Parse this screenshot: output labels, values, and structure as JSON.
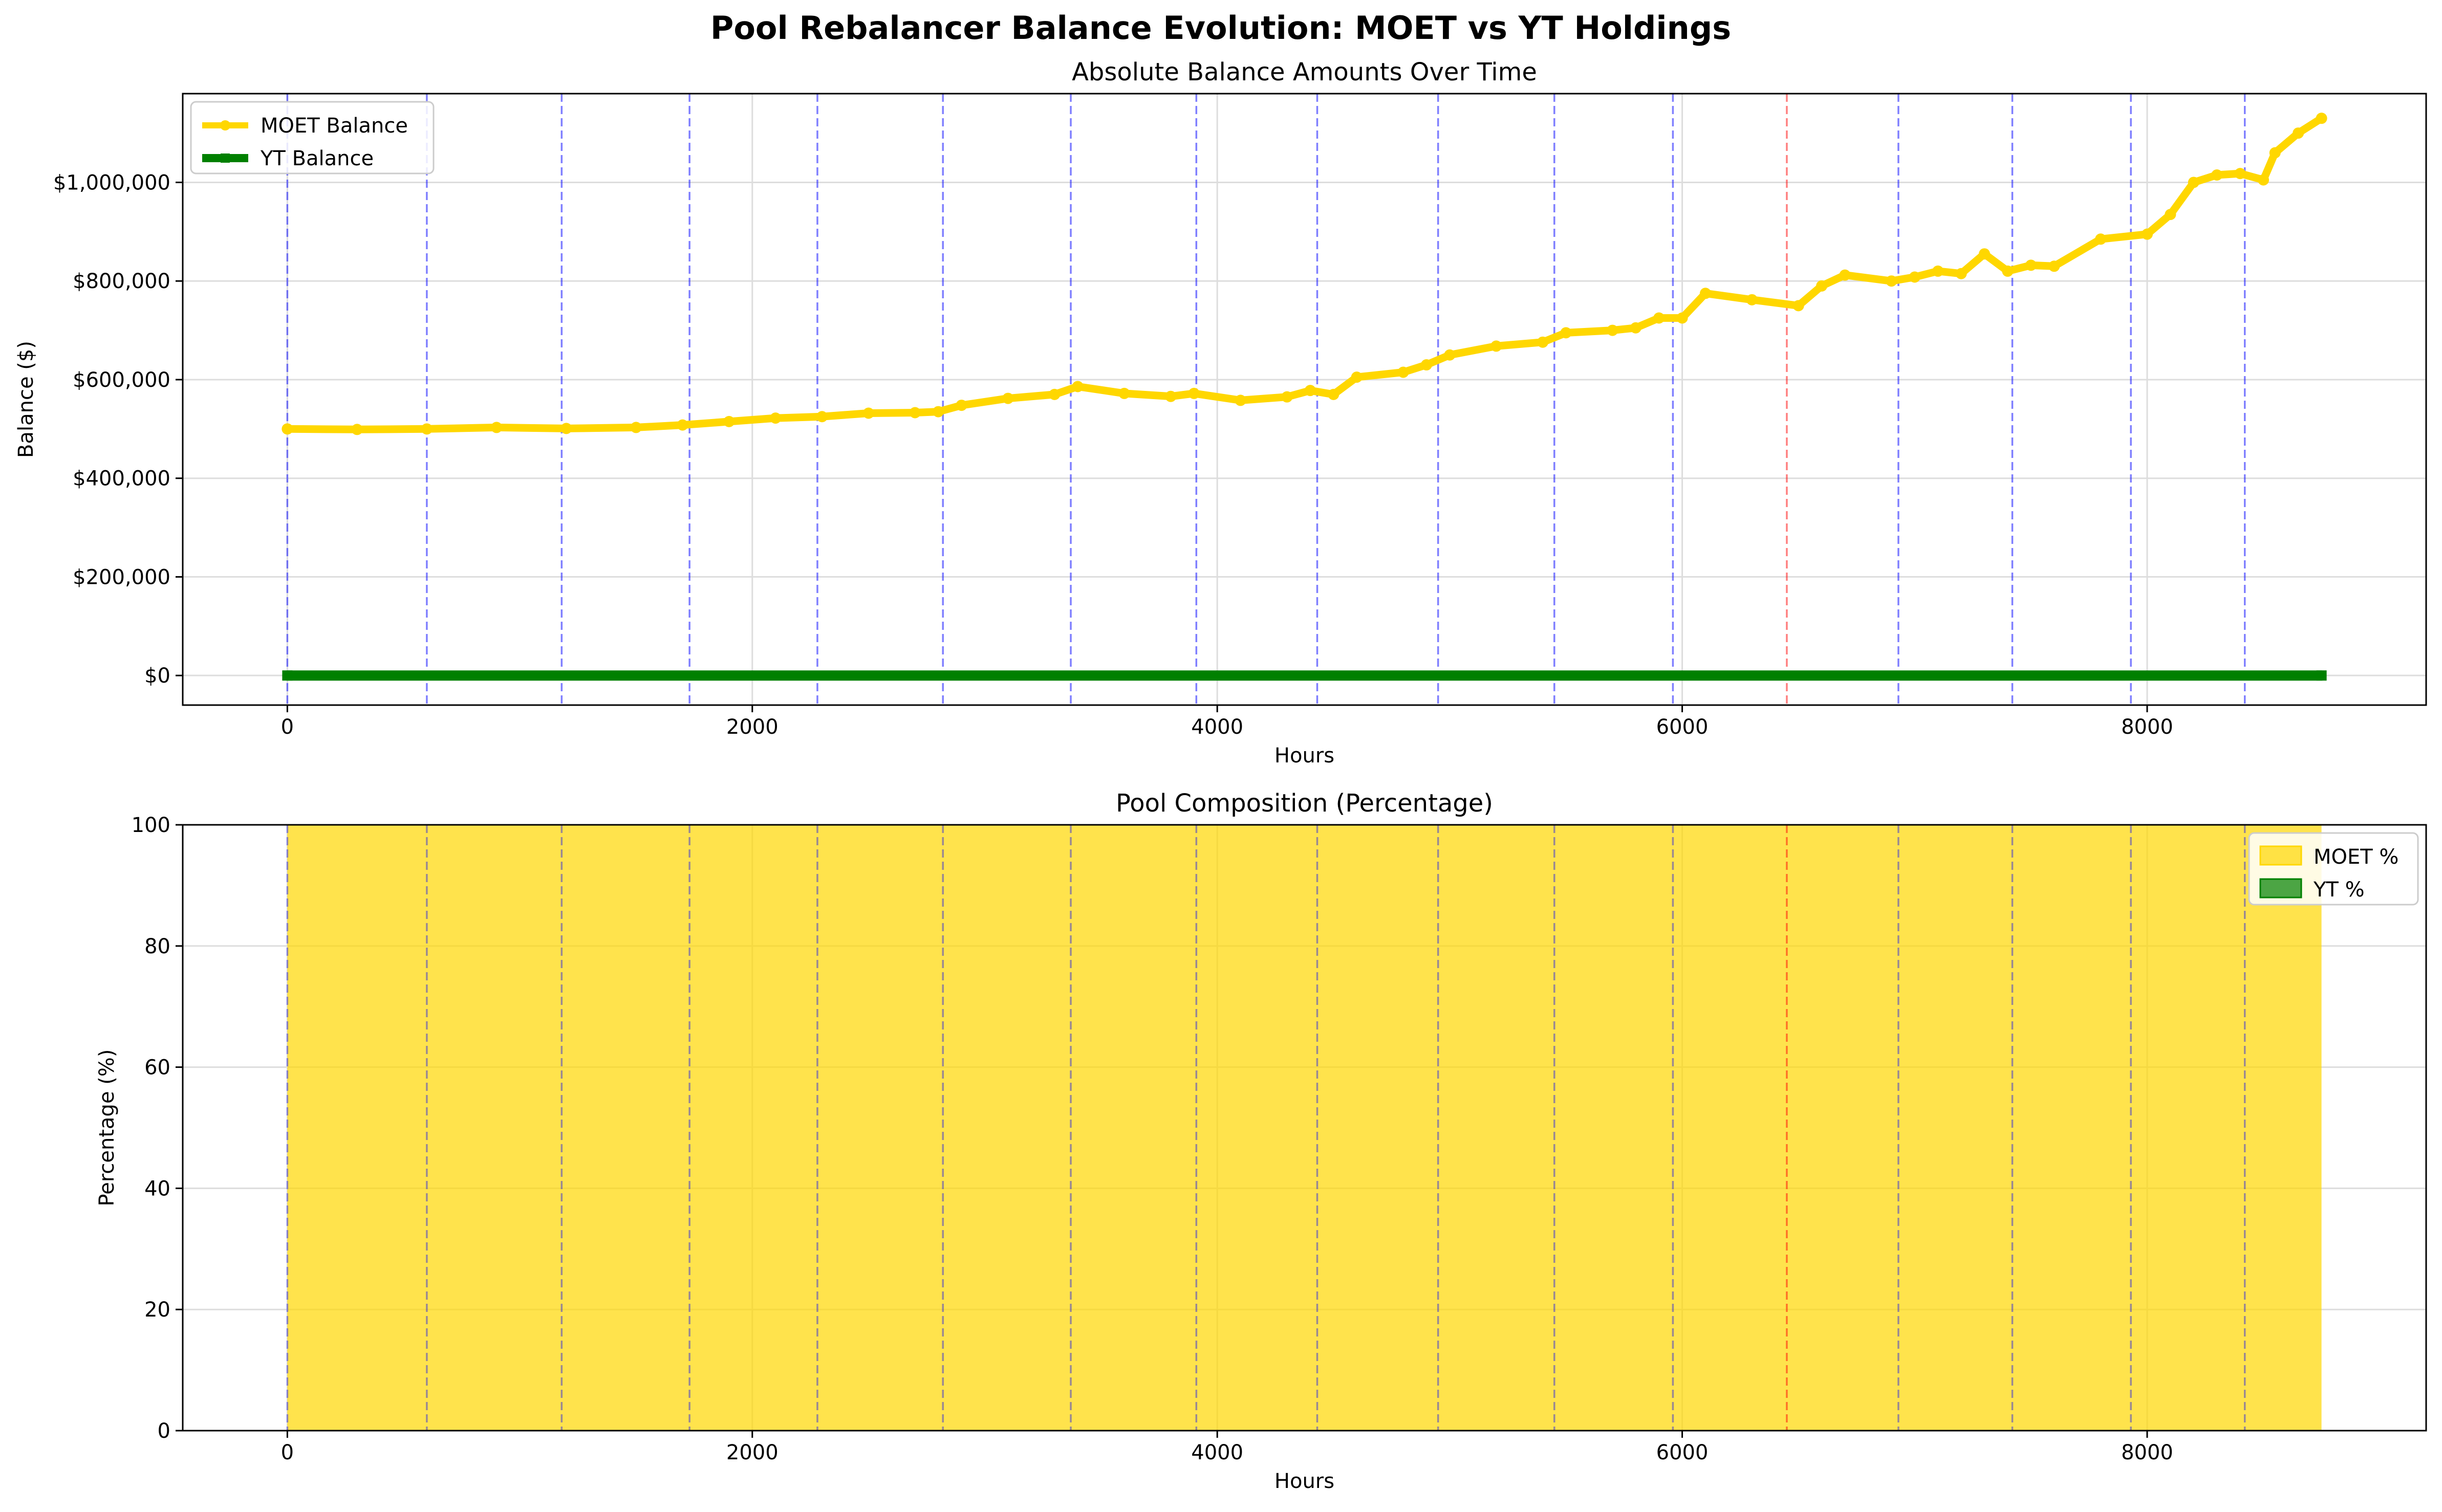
{
  "figure": {
    "suptitle": "Pool Rebalancer Balance Evolution: MOET vs YT Holdings"
  },
  "colors": {
    "moet": "#FFD700",
    "yt": "#008000",
    "rebalance_line": "#0000FF",
    "red_event_line": "#FF0000",
    "grid": "#DDDDDD"
  },
  "chart_data": [
    {
      "type": "line",
      "title": "Absolute Balance Amounts Over Time",
      "xlabel": "Hours",
      "ylabel": "Balance ($)",
      "xlim": [
        -450,
        9200
      ],
      "ylim": [
        -60000,
        1180000
      ],
      "xticks": [
        0,
        2000,
        4000,
        6000,
        8000
      ],
      "xtick_labels": [
        "0",
        "2000",
        "4000",
        "6000",
        "8000"
      ],
      "yticks": [
        0,
        200000,
        400000,
        600000,
        800000,
        1000000
      ],
      "ytick_labels": [
        "$0",
        "$200,000",
        "$400,000",
        "$600,000",
        "$800,000",
        "$1,000,000"
      ],
      "grid": true,
      "legend": "top-left",
      "series": [
        {
          "name": "MOET Balance",
          "x": [
            0,
            300,
            600,
            900,
            1200,
            1500,
            1700,
            1900,
            2100,
            2300,
            2500,
            2700,
            2800,
            2900,
            3100,
            3300,
            3400,
            3600,
            3800,
            3900,
            4100,
            4300,
            4400,
            4500,
            4600,
            4800,
            4900,
            5000,
            5200,
            5400,
            5500,
            5700,
            5800,
            5900,
            6000,
            6100,
            6300,
            6500,
            6600,
            6700,
            6900,
            7000,
            7100,
            7200,
            7300,
            7400,
            7500,
            7600,
            7800,
            8000,
            8100,
            8200,
            8300,
            8400,
            8500,
            8550,
            8650,
            8750
          ],
          "y": [
            500000,
            499000,
            500000,
            503000,
            501000,
            503000,
            508000,
            515000,
            522000,
            525000,
            532000,
            533000,
            535000,
            548000,
            562000,
            570000,
            586000,
            572000,
            566000,
            572000,
            558000,
            565000,
            578000,
            570000,
            605000,
            615000,
            630000,
            650000,
            668000,
            676000,
            695000,
            700000,
            705000,
            725000,
            725000,
            775000,
            762000,
            750000,
            790000,
            812000,
            800000,
            808000,
            820000,
            815000,
            855000,
            820000,
            832000,
            830000,
            885000,
            895000,
            935000,
            1000000,
            1015000,
            1018000,
            1005000,
            1060000,
            1100000,
            1130000
          ]
        },
        {
          "name": "YT Balance",
          "x": [
            0,
            8750
          ],
          "y": [
            0,
            0
          ]
        }
      ],
      "rebalance_lines_blue": [
        0,
        600,
        1180,
        1730,
        2280,
        2820,
        3370,
        3910,
        4430,
        4950,
        5450,
        5960,
        6930,
        7420,
        7930,
        8420
      ],
      "event_lines_red": [
        6450
      ]
    },
    {
      "type": "area",
      "title": "Pool Composition (Percentage)",
      "xlabel": "Hours",
      "ylabel": "Percentage (%)",
      "xlim": [
        -450,
        9200
      ],
      "ylim": [
        0,
        100
      ],
      "xticks": [
        0,
        2000,
        4000,
        6000,
        8000
      ],
      "xtick_labels": [
        "0",
        "2000",
        "4000",
        "6000",
        "8000"
      ],
      "yticks": [
        0,
        20,
        40,
        60,
        80,
        100
      ],
      "ytick_labels": [
        "0",
        "20",
        "40",
        "60",
        "80",
        "100"
      ],
      "grid": true,
      "legend": "top-right",
      "series": [
        {
          "name": "MOET %",
          "x": [
            0,
            8750
          ],
          "values": [
            100,
            100
          ]
        },
        {
          "name": "YT %",
          "x": [
            0,
            8750
          ],
          "values": [
            0,
            0
          ]
        }
      ],
      "rebalance_lines_blue": [
        0,
        600,
        1180,
        1730,
        2280,
        2820,
        3370,
        3910,
        4430,
        4950,
        5450,
        5960,
        6930,
        7420,
        7930,
        8420
      ],
      "event_lines_red": [
        6450
      ]
    }
  ]
}
